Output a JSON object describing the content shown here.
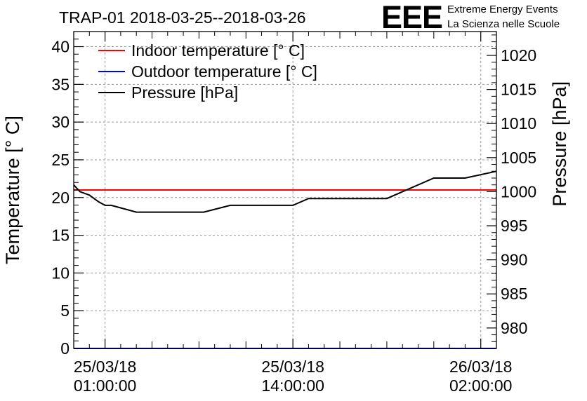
{
  "chart_data": {
    "type": "line",
    "title": "TRAP-01 2018-03-25--2018-03-26",
    "ylabel": "Temperature [° C]",
    "y2label": "Pressure [hPa]",
    "xlim": [
      -1.0,
      26.0
    ],
    "ylim": [
      0,
      42
    ],
    "y2lim": [
      977.0,
      1023.5
    ],
    "grid": true,
    "legend_position": "top-left",
    "x_unit": "hours since 25/03/18 00:00:00",
    "x_ticks": [
      {
        "x": 1,
        "date": "25/03/18",
        "time": "01:00:00"
      },
      {
        "x": 13,
        "date": "25/03/18",
        "time": "14:00:00"
      },
      {
        "x": 25,
        "date": "26/03/18",
        "time": "02:00:00"
      }
    ],
    "y_ticks": [
      0,
      5,
      10,
      15,
      20,
      25,
      30,
      35,
      40
    ],
    "y_tick_labels": [
      "0",
      "5",
      "10",
      "15",
      "20",
      "25",
      "30",
      "35",
      "40"
    ],
    "y2_ticks": [
      980,
      985,
      990,
      995,
      1000,
      1005,
      1010,
      1015,
      1020
    ],
    "y2_tick_labels": [
      "980",
      "985",
      "990",
      "995",
      "1000",
      "1005",
      "1010",
      "1015",
      "1020"
    ],
    "series": [
      {
        "name": "Indoor temperature [° C]",
        "axis": "left",
        "color": "#ff0000",
        "x": [
          -1.0,
          26.0
        ],
        "y": [
          21.0,
          21.0
        ]
      },
      {
        "name": "Outdoor temperature [° C]",
        "axis": "left",
        "color": "#0000ff",
        "x": [
          -1.0,
          26.0
        ],
        "y": [
          0.0,
          0.0
        ]
      },
      {
        "name": "Pressure [hPa]",
        "axis": "right",
        "color": "#000000",
        "x": [
          -1.0,
          -0.6,
          0.0,
          0.6,
          1.0,
          1.4,
          3.0,
          5.0,
          7.0,
          7.3,
          9.0,
          11.0,
          11.5,
          11.7,
          12.0,
          12.6,
          13.0,
          14.0,
          15.0,
          17.0,
          19.0,
          20.0,
          22.0,
          23.0,
          24.0,
          26.0
        ],
        "y": [
          1001.0,
          1000.0,
          999.5,
          998.5,
          998.0,
          998.0,
          997.0,
          997.0,
          997.0,
          997.0,
          998.0,
          998.0,
          998.0,
          998.0,
          998.0,
          998.0,
          998.0,
          999.0,
          999.0,
          999.0,
          999.0,
          1000.0,
          1002.0,
          1002.0,
          1002.0,
          1003.0
        ]
      }
    ]
  },
  "logo": {
    "mark": "EEE",
    "line1": "Extreme Energy Events",
    "line2": "La Scienza nelle Scuole",
    "color": "#0000ff"
  }
}
